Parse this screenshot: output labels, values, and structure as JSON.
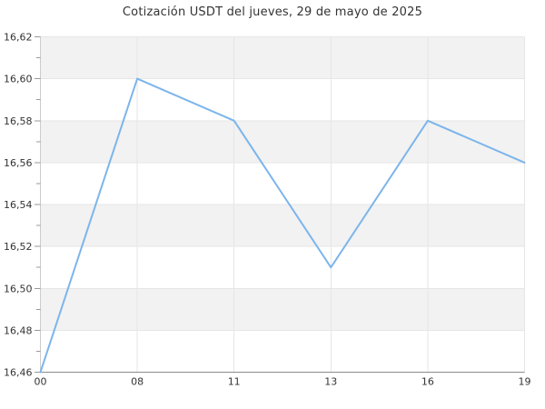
{
  "chart_data": {
    "type": "line",
    "title": "Cotización USDT del jueves, 29 de mayo de 2025",
    "categories": [
      "00",
      "08",
      "11",
      "13",
      "16",
      "19"
    ],
    "values": [
      16.46,
      16.6,
      16.58,
      16.51,
      16.58,
      16.56
    ],
    "xlabel": "",
    "ylabel": "",
    "ylim": [
      16.46,
      16.62
    ],
    "y_tick_step": 0.02,
    "y_tick_labels": [
      "16,62",
      "16,60",
      "16,58",
      "16,56",
      "16,54",
      "16,52",
      "16,50",
      "16,48",
      "16,46"
    ],
    "x_tick_labels": [
      "00",
      "08",
      "11",
      "13",
      "16",
      "19"
    ],
    "grid": true,
    "legend": "none",
    "alternating_bands": true,
    "colors": {
      "line": "#7cb5ec",
      "band": "#f2f2f2",
      "grid": "#e6e6e6",
      "x_axis": "#8a8a8a",
      "y_axis": "#cccccc",
      "tick": "#999999",
      "label": "#333333",
      "title": "#333333",
      "background": "#ffffff"
    }
  }
}
